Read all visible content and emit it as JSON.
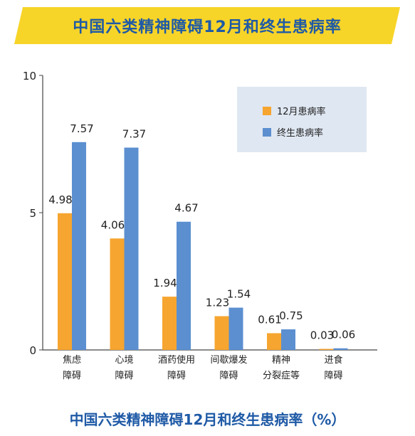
{
  "header": {
    "title": "中国六类精神障碍12月和终生患病率"
  },
  "footer": {
    "title": "中国六类精神障碍12月和终生患病率（%）"
  },
  "colors": {
    "banner": "#f7d428",
    "title_text": "#1f5aa6",
    "orange": "#f6a530",
    "blue": "#5b8fd0",
    "legend_bg": "#dfe7f2"
  },
  "chart_data": {
    "type": "bar",
    "categories": [
      "焦虑\n障碍",
      "心境\n障碍",
      "酒药使用\n障碍",
      "间歇爆发\n障碍",
      "精神\n分裂症等",
      "进食\n障碍"
    ],
    "series": [
      {
        "name": "12月患病率",
        "values": [
          4.98,
          4.06,
          1.94,
          1.23,
          0.61,
          0.03
        ],
        "labels": [
          "4.98",
          "4.06",
          "1.94",
          "1.23",
          "0.61",
          "0.03"
        ],
        "color": "#f6a530"
      },
      {
        "name": "终生患病率",
        "values": [
          7.57,
          7.37,
          4.67,
          1.54,
          0.75,
          0.06
        ],
        "labels": [
          "7.57",
          "7.37",
          "4.67",
          "1.54",
          "0.75",
          "0.06"
        ],
        "color": "#5b8fd0"
      }
    ],
    "ylim": [
      0,
      10
    ],
    "yticks": [
      "0",
      "5",
      "10"
    ],
    "legend_position": "top-right",
    "grid": false
  }
}
